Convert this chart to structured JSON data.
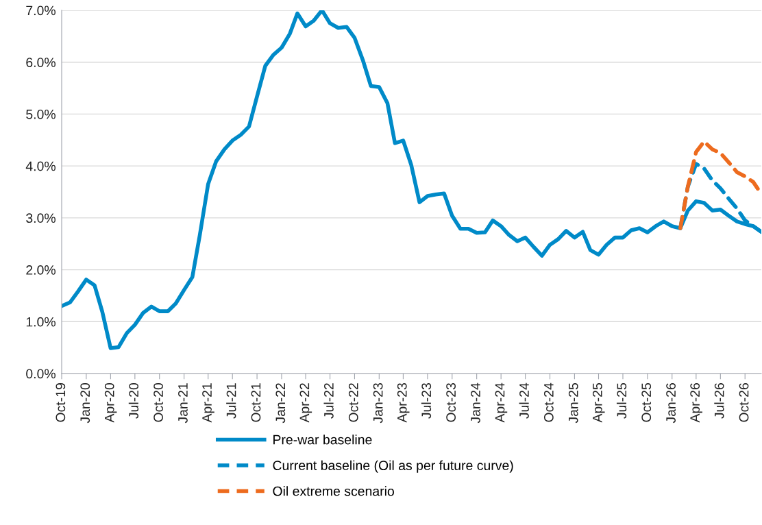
{
  "chart_data": {
    "type": "line",
    "x": [
      "2019-10",
      "2019-11",
      "2019-12",
      "2020-01",
      "2020-02",
      "2020-03",
      "2020-04",
      "2020-05",
      "2020-06",
      "2020-07",
      "2020-08",
      "2020-09",
      "2020-10",
      "2020-11",
      "2020-12",
      "2021-01",
      "2021-02",
      "2021-03",
      "2021-04",
      "2021-05",
      "2021-06",
      "2021-07",
      "2021-08",
      "2021-09",
      "2021-10",
      "2021-11",
      "2021-12",
      "2022-01",
      "2022-02",
      "2022-03",
      "2022-04",
      "2022-05",
      "2022-06",
      "2022-07",
      "2022-08",
      "2022-09",
      "2022-10",
      "2022-11",
      "2022-12",
      "2023-01",
      "2023-02",
      "2023-03",
      "2023-04",
      "2023-05",
      "2023-06",
      "2023-07",
      "2023-08",
      "2023-09",
      "2023-10",
      "2023-11",
      "2023-12",
      "2024-01",
      "2024-02",
      "2024-03",
      "2024-04",
      "2024-05",
      "2024-06",
      "2024-07",
      "2024-08",
      "2024-09",
      "2024-10",
      "2024-11",
      "2024-12",
      "2025-01",
      "2025-02",
      "2025-03",
      "2025-04",
      "2025-05",
      "2025-06",
      "2025-07",
      "2025-08",
      "2025-09",
      "2025-10",
      "2025-11",
      "2025-12",
      "2026-01",
      "2026-02",
      "2026-03",
      "2026-04",
      "2026-05",
      "2026-06",
      "2026-07",
      "2026-08",
      "2026-09",
      "2026-10",
      "2026-11",
      "2026-12"
    ],
    "series": [
      {
        "name": "Pre-war baseline",
        "color": "#008ac8",
        "line_style": "solid",
        "values": [
          1.3,
          1.37,
          1.58,
          1.81,
          1.7,
          1.19,
          0.49,
          0.51,
          0.78,
          0.94,
          1.17,
          1.29,
          1.2,
          1.2,
          1.35,
          1.61,
          1.86,
          2.67,
          3.65,
          4.09,
          4.32,
          4.49,
          4.6,
          4.76,
          5.34,
          5.93,
          6.14,
          6.28,
          6.55,
          6.94,
          6.69,
          6.8,
          7.0,
          6.75,
          6.66,
          6.68,
          6.47,
          6.04,
          5.54,
          5.52,
          5.21,
          4.44,
          4.49,
          4.02,
          3.3,
          3.42,
          3.45,
          3.47,
          3.04,
          2.79,
          2.79,
          2.71,
          2.72,
          2.95,
          2.84,
          2.67,
          2.55,
          2.62,
          2.44,
          2.27,
          2.48,
          2.59,
          2.75,
          2.62,
          2.73,
          2.38,
          2.29,
          2.48,
          2.62,
          2.62,
          2.76,
          2.8,
          2.72,
          2.84,
          2.93,
          2.84,
          2.8,
          3.14,
          3.32,
          3.29,
          3.14,
          3.16,
          3.04,
          2.93,
          2.88,
          2.84,
          2.73
        ]
      },
      {
        "name": "Current baseline (Oil as per future curve)",
        "color": "#008ac8",
        "line_style": "dashed",
        "x": [
          "2026-02",
          "2026-03",
          "2026-04",
          "2026-05",
          "2026-06",
          "2026-07",
          "2026-08",
          "2026-09",
          "2026-10",
          "2026-11",
          "2026-12"
        ],
        "values": [
          2.8,
          3.6,
          4.04,
          3.95,
          3.72,
          3.57,
          3.37,
          3.18,
          2.95,
          2.84,
          2.73
        ]
      },
      {
        "name": "Oil extreme scenario",
        "color": "#ed6b1e",
        "line_style": "dashed",
        "x": [
          "2026-02",
          "2026-03",
          "2026-04",
          "2026-05",
          "2026-06",
          "2026-07",
          "2026-08",
          "2026-09",
          "2026-10",
          "2026-11",
          "2026-12"
        ],
        "values": [
          2.8,
          3.6,
          4.27,
          4.47,
          4.32,
          4.25,
          4.07,
          3.88,
          3.8,
          3.69,
          3.46
        ]
      }
    ],
    "xlim": [
      "2019-10",
      "2026-12"
    ],
    "xticks": [
      {
        "value": "2019-10",
        "label": "Oct-19"
      },
      {
        "value": "2020-01",
        "label": "Jan-20"
      },
      {
        "value": "2020-04",
        "label": "Apr-20"
      },
      {
        "value": "2020-07",
        "label": "Jul-20"
      },
      {
        "value": "2020-10",
        "label": "Oct-20"
      },
      {
        "value": "2021-01",
        "label": "Jan-21"
      },
      {
        "value": "2021-04",
        "label": "Apr-21"
      },
      {
        "value": "2021-07",
        "label": "Jul-21"
      },
      {
        "value": "2021-10",
        "label": "Oct-21"
      },
      {
        "value": "2022-01",
        "label": "Jan-22"
      },
      {
        "value": "2022-04",
        "label": "Apr-22"
      },
      {
        "value": "2022-07",
        "label": "Jul-22"
      },
      {
        "value": "2022-10",
        "label": "Oct-22"
      },
      {
        "value": "2023-01",
        "label": "Jan-23"
      },
      {
        "value": "2023-04",
        "label": "Apr-23"
      },
      {
        "value": "2023-07",
        "label": "Jul-23"
      },
      {
        "value": "2023-10",
        "label": "Oct-23"
      },
      {
        "value": "2024-01",
        "label": "Jan-24"
      },
      {
        "value": "2024-04",
        "label": "Apr-24"
      },
      {
        "value": "2024-07",
        "label": "Jul-24"
      },
      {
        "value": "2024-10",
        "label": "Oct-24"
      },
      {
        "value": "2025-01",
        "label": "Jan-25"
      },
      {
        "value": "2025-04",
        "label": "Apr-25"
      },
      {
        "value": "2025-07",
        "label": "Jul-25"
      },
      {
        "value": "2025-10",
        "label": "Oct-25"
      },
      {
        "value": "2026-01",
        "label": "Jan-26"
      },
      {
        "value": "2026-04",
        "label": "Apr-26"
      },
      {
        "value": "2026-07",
        "label": "Jul-26"
      },
      {
        "value": "2026-10",
        "label": "Oct-26"
      }
    ],
    "ylim": [
      0,
      7
    ],
    "yticks": [
      {
        "value": 0,
        "label": "0.0%"
      },
      {
        "value": 1,
        "label": "1.0%"
      },
      {
        "value": 2,
        "label": "2.0%"
      },
      {
        "value": 3,
        "label": "3.0%"
      },
      {
        "value": 4,
        "label": "4.0%"
      },
      {
        "value": 5,
        "label": "5.0%"
      },
      {
        "value": 6,
        "label": "6.0%"
      },
      {
        "value": 7,
        "label": "7.0%"
      }
    ],
    "grid": "y",
    "legend": "bottom",
    "marker": "none"
  }
}
